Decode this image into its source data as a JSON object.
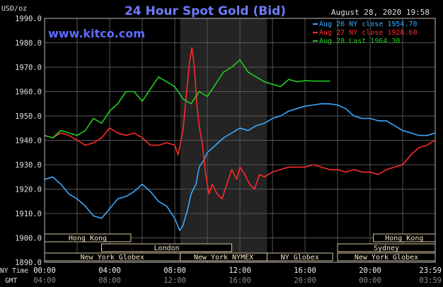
{
  "chart_data": {
    "type": "line",
    "title": "24 Hour Spot Gold (Bid)",
    "timestamp": "August 28, 2020 19:58",
    "watermark": "www.kitco.com",
    "ylabel": "USD/oz",
    "ylim": [
      1890,
      1990
    ],
    "yticks": [
      "1990.0",
      "1980.0",
      "1970.0",
      "1960.0",
      "1950.0",
      "1940.0",
      "1930.0",
      "1920.0",
      "1910.0",
      "1900.0",
      "1890.0"
    ],
    "xlim_hours": [
      0,
      24
    ],
    "row_label_nytime": "NY Time",
    "row_label_gmt": "GMT",
    "xticks_ny": [
      "00:00",
      "04:00",
      "08:00",
      "12:00",
      "16:00",
      "20:00",
      "23:59"
    ],
    "xticks_gmt": [
      "04:00",
      "08:00",
      "12:00",
      "16:00",
      "20:00",
      "00:00",
      "03:59"
    ],
    "highlight_hours": [
      8.33,
      13.67
    ],
    "grid": true,
    "legend_position": "top-right",
    "legend": [
      {
        "label": "Aug 26 NY close 1954.70",
        "color": "#3aa8ff"
      },
      {
        "label": "Aug 27 NY close 1928.60",
        "color": "#ff2a2a"
      },
      {
        "label": "Aug 28 Last 1964.30",
        "color": "#22cc22"
      }
    ],
    "sessions": [
      {
        "label": "Hong Kong",
        "start": 0,
        "end": 5.3,
        "row": 0
      },
      {
        "label": "Hong Kong",
        "start": 20.2,
        "end": 24,
        "row": 0
      },
      {
        "label": "London",
        "start": 3.5,
        "end": 11.5,
        "row": 1
      },
      {
        "label": "Sydney",
        "start": 18,
        "end": 24,
        "row": 1
      },
      {
        "label": "New York Globex",
        "start": 0,
        "end": 8.33,
        "row": 2
      },
      {
        "label": "New York NYMEX",
        "start": 8.33,
        "end": 13.67,
        "row": 2
      },
      {
        "label": "NY Globex",
        "start": 13.67,
        "end": 17.7,
        "row": 2
      },
      {
        "label": "New York Globex",
        "start": 18,
        "end": 24,
        "row": 2
      }
    ],
    "series": [
      {
        "name": "Aug 26 NY close 1954.70",
        "color": "#3aa8ff",
        "x": [
          0,
          0.5,
          1,
          1.5,
          2,
          2.5,
          3,
          3.5,
          4,
          4.5,
          5,
          5.5,
          6,
          6.5,
          7,
          7.5,
          8,
          8.3,
          8.5,
          8.8,
          9,
          9.3,
          9.5,
          9.8,
          10,
          10.5,
          11,
          11.5,
          12,
          12.5,
          13,
          13.5,
          14,
          14.5,
          15,
          15.5,
          16,
          16.5,
          17,
          17.5,
          18,
          18.5,
          19,
          19.5,
          20,
          20.5,
          21,
          21.5,
          22,
          22.5,
          23,
          23.5,
          23.98
        ],
        "y": [
          1924,
          1925,
          1922,
          1918,
          1916,
          1913,
          1909,
          1908,
          1912,
          1916,
          1917,
          1919,
          1922,
          1919,
          1915,
          1913,
          1908,
          1903,
          1905,
          1912,
          1918,
          1922,
          1929,
          1932,
          1935,
          1938,
          1941,
          1943,
          1945,
          1944,
          1946,
          1947,
          1949,
          1950,
          1952,
          1953,
          1954,
          1954.5,
          1955,
          1955,
          1954.5,
          1953,
          1950,
          1949,
          1949,
          1948,
          1948,
          1946,
          1944,
          1943,
          1942,
          1942,
          1943
        ]
      },
      {
        "name": "Aug 27 NY close 1928.60",
        "color": "#ff2a2a",
        "x": [
          0,
          0.5,
          1,
          1.5,
          2,
          2.5,
          3,
          3.5,
          4,
          4.5,
          5,
          5.5,
          6,
          6.5,
          7,
          7.5,
          8,
          8.2,
          8.5,
          8.7,
          8.9,
          9.05,
          9.2,
          9.35,
          9.5,
          9.7,
          9.9,
          10.1,
          10.3,
          10.6,
          10.9,
          11.2,
          11.5,
          11.8,
          12,
          12.3,
          12.6,
          12.9,
          13.2,
          13.5,
          14,
          14.5,
          15,
          15.5,
          16,
          16.5,
          17,
          17.5,
          18,
          18.5,
          19,
          19.5,
          20,
          20.5,
          21,
          21.5,
          22,
          22.5,
          23,
          23.5,
          23.98
        ],
        "y": [
          1942,
          1941,
          1943,
          1942,
          1940,
          1938,
          1939,
          1941,
          1945,
          1943,
          1942,
          1943,
          1941,
          1938,
          1938,
          1939,
          1938,
          1934,
          1944,
          1958,
          1972,
          1978,
          1970,
          1955,
          1946,
          1938,
          1926,
          1918,
          1922,
          1918,
          1916,
          1922,
          1928,
          1924,
          1929,
          1926,
          1922,
          1920,
          1926,
          1925,
          1927,
          1928,
          1929,
          1929,
          1929,
          1930,
          1929,
          1928,
          1928,
          1927,
          1928,
          1927,
          1927,
          1926,
          1928,
          1929,
          1930,
          1934,
          1937,
          1938,
          1940
        ]
      },
      {
        "name": "Aug 28 Last 1964.30",
        "color": "#22cc22",
        "x": [
          0,
          0.5,
          1,
          1.5,
          2,
          2.5,
          3,
          3.5,
          4,
          4.5,
          5,
          5.5,
          6,
          6.5,
          7,
          7.5,
          8,
          8.5,
          9,
          9.5,
          10,
          10.5,
          11,
          11.5,
          12,
          12.5,
          13,
          13.5,
          14,
          14.5,
          15,
          15.5,
          16,
          16.5,
          17,
          17.55
        ],
        "y": [
          1942,
          1941,
          1944,
          1943,
          1942,
          1944,
          1949,
          1947,
          1952,
          1955,
          1960,
          1960,
          1956,
          1961,
          1966,
          1964,
          1962,
          1957,
          1955,
          1960,
          1958,
          1963,
          1968,
          1970,
          1973,
          1968,
          1966,
          1964,
          1963,
          1962,
          1965,
          1964,
          1964.5,
          1964.3,
          1964.3,
          1964.3
        ]
      }
    ]
  }
}
